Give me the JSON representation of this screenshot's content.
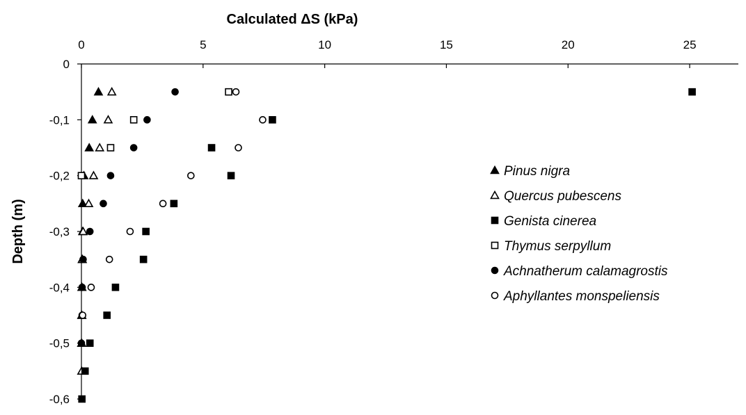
{
  "chart_data": {
    "type": "scatter",
    "title": "",
    "xlabel": "Calculated ΔS (kPa)",
    "ylabel": "Depth (m)",
    "x_axis_position": "top",
    "xlim": [
      0,
      27
    ],
    "ylim": [
      -0.6,
      0
    ],
    "x_ticks": [
      0,
      5,
      10,
      15,
      20,
      25
    ],
    "x_tick_labels": [
      "0",
      "5",
      "10",
      "15",
      "20",
      "25"
    ],
    "y_ticks": [
      0,
      -0.1,
      -0.2,
      -0.3,
      -0.4,
      -0.5,
      -0.6
    ],
    "y_tick_labels": [
      "0",
      "-0,1",
      "-0,2",
      "-0,3",
      "-0,4",
      "-0,5",
      "-0,6"
    ],
    "grid": false,
    "legend_position": "right",
    "series": [
      {
        "name": "Pinus nigra",
        "marker": "filled-triangle",
        "color": "#000000",
        "points": [
          [
            0.7,
            -0.05
          ],
          [
            0.45,
            -0.1
          ],
          [
            0.32,
            -0.15
          ],
          [
            0.1,
            -0.2
          ],
          [
            0.05,
            -0.25
          ],
          [
            0.05,
            -0.3
          ],
          [
            0.03,
            -0.35
          ],
          [
            0.02,
            -0.4
          ],
          [
            0.01,
            -0.45
          ],
          [
            0.01,
            -0.5
          ]
        ]
      },
      {
        "name": "Quercus pubescens",
        "marker": "open-triangle",
        "color": "#000000",
        "points": [
          [
            1.25,
            -0.05
          ],
          [
            1.1,
            -0.1
          ],
          [
            0.75,
            -0.15
          ],
          [
            0.5,
            -0.2
          ],
          [
            0.3,
            -0.25
          ],
          [
            0.07,
            -0.3
          ],
          [
            0.04,
            -0.35
          ],
          [
            0.02,
            -0.4
          ],
          [
            0.02,
            -0.45
          ],
          [
            0.01,
            -0.5
          ],
          [
            0.01,
            -0.55
          ]
        ]
      },
      {
        "name": "Genista cinerea",
        "marker": "filled-square",
        "color": "#000000",
        "points": [
          [
            25.1,
            -0.05
          ],
          [
            7.85,
            -0.1
          ],
          [
            5.35,
            -0.15
          ],
          [
            6.15,
            -0.2
          ],
          [
            3.8,
            -0.25
          ],
          [
            2.65,
            -0.3
          ],
          [
            2.55,
            -0.35
          ],
          [
            1.4,
            -0.4
          ],
          [
            1.05,
            -0.45
          ],
          [
            0.35,
            -0.5
          ],
          [
            0.15,
            -0.55
          ],
          [
            0.02,
            -0.6
          ]
        ]
      },
      {
        "name": "Thymus serpyllum",
        "marker": "open-square",
        "color": "#000000",
        "points": [
          [
            6.05,
            -0.05
          ],
          [
            2.15,
            -0.1
          ],
          [
            1.2,
            -0.15
          ],
          [
            0.0,
            -0.2
          ]
        ]
      },
      {
        "name": "Achnatherum calamagrostis",
        "marker": "filled-circle",
        "color": "#000000",
        "points": [
          [
            3.85,
            -0.05
          ],
          [
            2.7,
            -0.1
          ],
          [
            2.15,
            -0.15
          ],
          [
            1.2,
            -0.2
          ],
          [
            0.9,
            -0.25
          ],
          [
            0.35,
            -0.3
          ],
          [
            0.07,
            -0.35
          ],
          [
            0.03,
            -0.4
          ],
          [
            0.03,
            -0.45
          ],
          [
            0.0,
            -0.5
          ]
        ]
      },
      {
        "name": "Aphyllantes monspeliensis",
        "marker": "open-circle",
        "color": "#000000",
        "points": [
          [
            6.35,
            -0.05
          ],
          [
            7.45,
            -0.1
          ],
          [
            6.45,
            -0.15
          ],
          [
            4.5,
            -0.2
          ],
          [
            3.35,
            -0.25
          ],
          [
            2.0,
            -0.3
          ],
          [
            1.15,
            -0.35
          ],
          [
            0.4,
            -0.4
          ],
          [
            0.05,
            -0.45
          ]
        ]
      }
    ]
  }
}
